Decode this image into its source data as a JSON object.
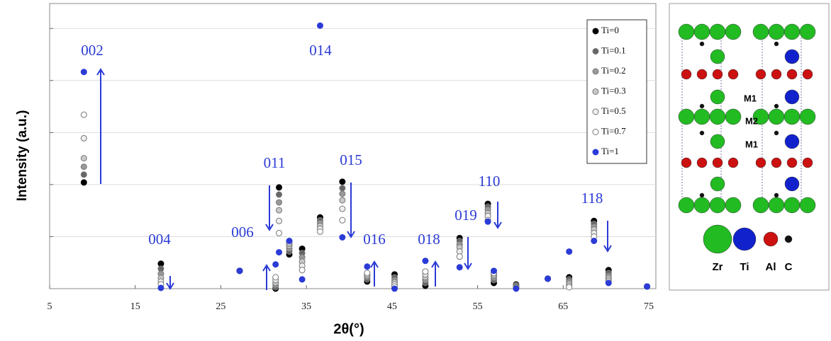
{
  "chart_data": {
    "type": "scatter",
    "xlabel": "2θ(°)",
    "ylabel": "Intensity (a.u.)",
    "xlim": [
      5,
      75
    ],
    "xticks": [
      5,
      15,
      25,
      35,
      45,
      55,
      65,
      75
    ],
    "ylim": [
      0,
      400
    ],
    "yticks": [
      73,
      146,
      219,
      292,
      365
    ],
    "grid": true,
    "legend": "upper right",
    "x": [
      9.0,
      18.0,
      27.2,
      31.4,
      31.8,
      33.0,
      34.5,
      36.6,
      39.2,
      42.1,
      45.3,
      48.9,
      52.9,
      56.2,
      56.9,
      59.5,
      63.2,
      65.7,
      68.6,
      70.3,
      74.8
    ],
    "series": [
      {
        "name": "Ti=0",
        "color": "#000000",
        "values": [
          149,
          35,
          25,
          0,
          142,
          48,
          56,
          100,
          150,
          10,
          20,
          4,
          71,
          119,
          8,
          6,
          14,
          16,
          95,
          26,
          3
        ]
      },
      {
        "name": "Ti=0.1",
        "color": "#666666",
        "values": [
          160,
          28,
          25,
          2,
          132,
          52,
          50,
          96,
          141,
          13,
          16,
          8,
          67,
          115,
          12,
          5,
          14,
          13,
          91,
          22,
          3
        ]
      },
      {
        "name": "Ti=0.2",
        "color": "#999999",
        "values": [
          171,
          21,
          25,
          5,
          121,
          56,
          44,
          92,
          133,
          16,
          12,
          12,
          62,
          111,
          15,
          4,
          14,
          10,
          87,
          18,
          3
        ]
      },
      {
        "name": "Ti=0.3",
        "color": "#c8c8c8",
        "values": [
          183,
          15,
          25,
          8,
          110,
          60,
          38,
          88,
          124,
          18,
          9,
          16,
          58,
          106,
          18,
          3,
          14,
          7,
          83,
          15,
          3
        ]
      },
      {
        "name": "Ti=0.5",
        "color": "#eeeeee",
        "values": [
          211,
          10,
          25,
          12,
          95,
          63,
          32,
          84,
          112,
          20,
          6,
          20,
          52,
          102,
          20,
          2,
          14,
          4,
          78,
          12,
          3
        ]
      },
      {
        "name": "Ti=0.7",
        "color": "#ffffff",
        "values": [
          244,
          6,
          25,
          16,
          78,
          65,
          26,
          80,
          96,
          22,
          3,
          24,
          45,
          96,
          22,
          1,
          14,
          2,
          73,
          10,
          3
        ]
      },
      {
        "name": "Ti=1",
        "color": "#2b3bd6",
        "values": [
          304,
          1,
          25,
          34,
          51,
          67,
          13,
          369,
          72,
          31,
          0,
          39,
          30,
          94,
          25,
          0,
          14,
          52,
          67,
          8,
          3
        ]
      }
    ],
    "annotations": [
      "002",
      "014",
      "004",
      "006",
      "011",
      "015",
      "016",
      "018",
      "019",
      "110",
      "118"
    ]
  },
  "structure": {
    "site_labels": [
      "M1",
      "M2",
      "M1"
    ],
    "legend": [
      "Zr",
      "Ti",
      "Al",
      "C"
    ]
  }
}
